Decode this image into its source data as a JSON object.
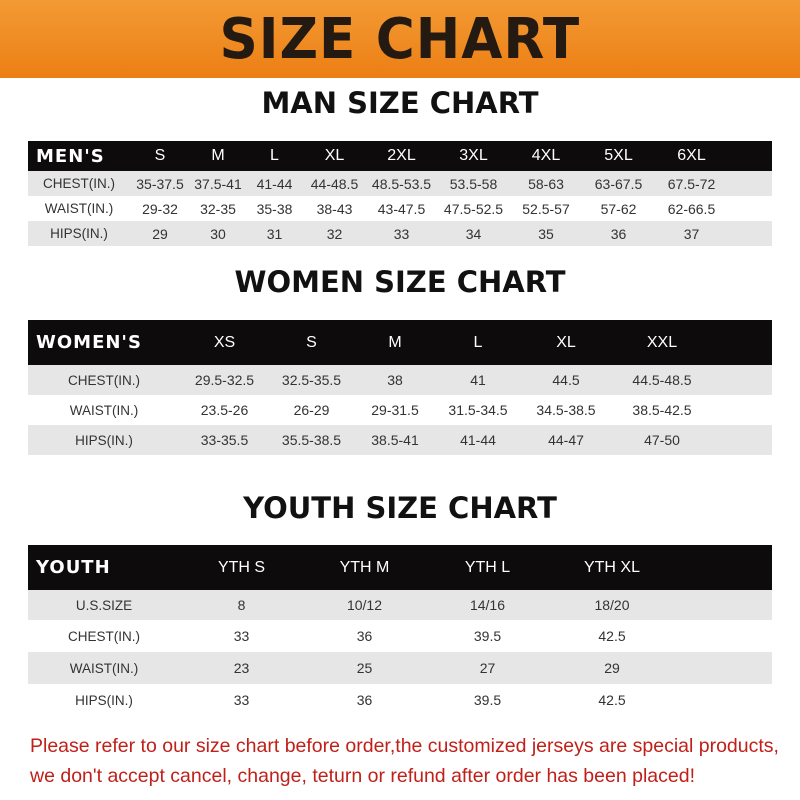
{
  "banner": {
    "title": "SIZE CHART",
    "color": "#ee8620"
  },
  "men": {
    "title": "MAN SIZE CHART",
    "header": [
      "MEN'S",
      "S",
      "M",
      "L",
      "XL",
      "2XL",
      "3XL",
      "4XL",
      "5XL",
      "6XL"
    ],
    "rows": [
      [
        "CHEST(IN.)",
        "35-37.5",
        "37.5-41",
        "41-44",
        "44-48.5",
        "48.5-53.5",
        "53.5-58",
        "58-63",
        "63-67.5",
        "67.5-72"
      ],
      [
        "WAIST(IN.)",
        "29-32",
        "32-35",
        "35-38",
        "38-43",
        "43-47.5",
        "47.5-52.5",
        "52.5-57",
        "57-62",
        "62-66.5"
      ],
      [
        "HIPS(IN.)",
        "29",
        "30",
        "31",
        "32",
        "33",
        "34",
        "35",
        "36",
        "37"
      ]
    ]
  },
  "women": {
    "title": "WOMEN SIZE CHART",
    "header": [
      "WOMEN'S",
      "XS",
      "S",
      "M",
      "L",
      "XL",
      "XXL"
    ],
    "rows": [
      [
        "CHEST(IN.)",
        "29.5-32.5",
        "32.5-35.5",
        "38",
        "41",
        "44.5",
        "44.5-48.5"
      ],
      [
        "WAIST(IN.)",
        "23.5-26",
        "26-29",
        "29-31.5",
        "31.5-34.5",
        "34.5-38.5",
        "38.5-42.5"
      ],
      [
        "HIPS(IN.)",
        "33-35.5",
        "35.5-38.5",
        "38.5-41",
        "41-44",
        "44-47",
        "47-50"
      ]
    ]
  },
  "youth": {
    "title": "YOUTH SIZE CHART",
    "header": [
      "YOUTH",
      "YTH S",
      "YTH M",
      "YTH L",
      "YTH XL"
    ],
    "rows": [
      [
        "U.S.SIZE",
        "8",
        "10/12",
        "14/16",
        "18/20"
      ],
      [
        "CHEST(IN.)",
        "33",
        "36",
        "39.5",
        "42.5"
      ],
      [
        "WAIST(IN.)",
        "23",
        "25",
        "27",
        "29"
      ],
      [
        "HIPS(IN.)",
        "33",
        "36",
        "39.5",
        "42.5"
      ]
    ]
  },
  "note": {
    "line1": "Please refer to our size chart before order,the customized jerseys are special products,",
    "line2": "we don't accept cancel, change, teturn or refund after order has been placed!"
  }
}
